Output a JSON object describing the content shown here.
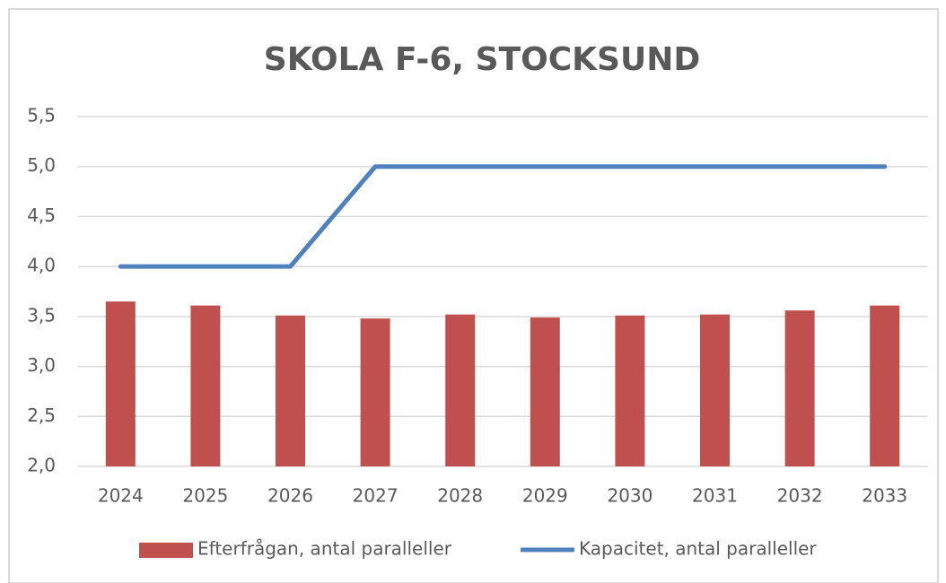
{
  "chart_data": {
    "type": "combo",
    "title": "SKOLA F-6, STOCKSUND",
    "categories": [
      "2024",
      "2025",
      "2026",
      "2027",
      "2028",
      "2029",
      "2030",
      "2031",
      "2032",
      "2033"
    ],
    "series": [
      {
        "name": "Efterfrågan, antal paralleller",
        "type": "bar",
        "color": "#c0504d",
        "values": [
          3.65,
          3.61,
          3.51,
          3.48,
          3.52,
          3.49,
          3.51,
          3.52,
          3.56,
          3.61
        ]
      },
      {
        "name": "Kapacitet, antal paralleller",
        "type": "line",
        "color": "#4f81bd",
        "values": [
          4,
          4,
          4,
          5,
          5,
          5,
          5,
          5,
          5,
          5
        ]
      }
    ],
    "ylim": [
      2,
      5.5
    ],
    "yticks": [
      {
        "value": 2,
        "label": "2,0"
      },
      {
        "value": 2.5,
        "label": "2,5"
      },
      {
        "value": 3,
        "label": "3,0"
      },
      {
        "value": 3.5,
        "label": "3,5"
      },
      {
        "value": 4,
        "label": "4,0"
      },
      {
        "value": 4.5,
        "label": "4,5"
      },
      {
        "value": 5,
        "label": "5,0"
      },
      {
        "value": 5.5,
        "label": "5,5"
      }
    ],
    "grid": true,
    "legend": "bottom"
  }
}
